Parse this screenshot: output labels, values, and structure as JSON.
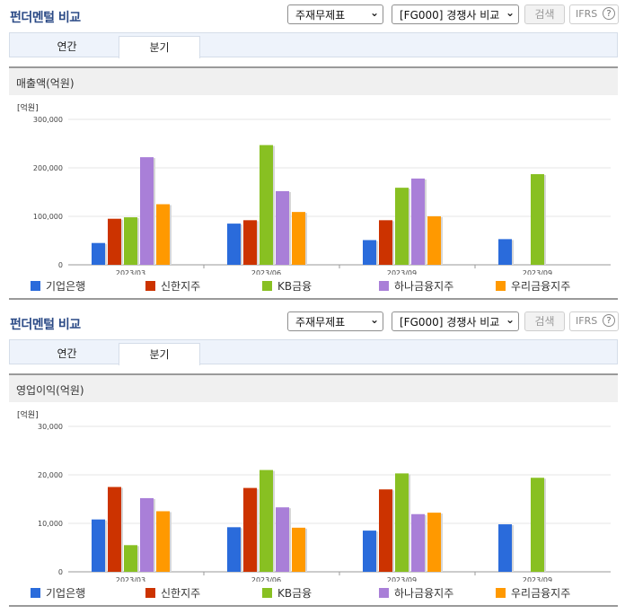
{
  "header": {
    "title": "펀더멘털 비교",
    "select1": "주재무제표",
    "select2": "[FG000] 경쟁사 비교",
    "search_label": "검색",
    "ifrs_label": "IFRS",
    "help_label": "?"
  },
  "tabs": [
    "연간",
    "분기"
  ],
  "colors": {
    "기업은행": "#2a6bdb",
    "신한지주": "#cc3300",
    "KB금융": "#88c022",
    "하나금융지주": "#a97fd8",
    "우리금융지주": "#ff9900"
  },
  "legend": [
    "기업은행",
    "신한지주",
    "KB금융",
    "하나금융지주",
    "우리금융지주"
  ],
  "chart_data": [
    {
      "type": "bar",
      "title": "매출액(억원)",
      "unit": "[억원]",
      "categories": [
        "2023/03",
        "2023/06",
        "2023/09",
        "2023/09"
      ],
      "yticks": [
        "0",
        "100,000",
        "200,000",
        "300,000"
      ],
      "ylim": [
        0,
        300000
      ],
      "series": [
        {
          "name": "기업은행",
          "values": [
            45000,
            85000,
            51000,
            53000
          ]
        },
        {
          "name": "신한지주",
          "values": [
            95000,
            92000,
            92000,
            null
          ]
        },
        {
          "name": "KB금융",
          "values": [
            98000,
            247000,
            159000,
            187000
          ]
        },
        {
          "name": "하나금융지주",
          "values": [
            222000,
            152000,
            178000,
            null
          ]
        },
        {
          "name": "우리금융지주",
          "values": [
            125000,
            109000,
            100000,
            null
          ]
        }
      ]
    },
    {
      "type": "bar",
      "title": "영업이익(억원)",
      "unit": "[억원]",
      "categories": [
        "2023/03",
        "2023/06",
        "2023/09",
        "2023/09"
      ],
      "yticks": [
        "0",
        "10,000",
        "20,000",
        "30,000"
      ],
      "ylim": [
        0,
        30000
      ],
      "series": [
        {
          "name": "기업은행",
          "values": [
            10800,
            9200,
            8500,
            9800
          ]
        },
        {
          "name": "신한지주",
          "values": [
            17500,
            17300,
            17000,
            null
          ]
        },
        {
          "name": "KB금융",
          "values": [
            5500,
            21000,
            20300,
            19400
          ]
        },
        {
          "name": "하나금융지주",
          "values": [
            15200,
            13300,
            11900,
            null
          ]
        },
        {
          "name": "우리금융지주",
          "values": [
            12500,
            9100,
            12200,
            null
          ]
        }
      ]
    }
  ]
}
